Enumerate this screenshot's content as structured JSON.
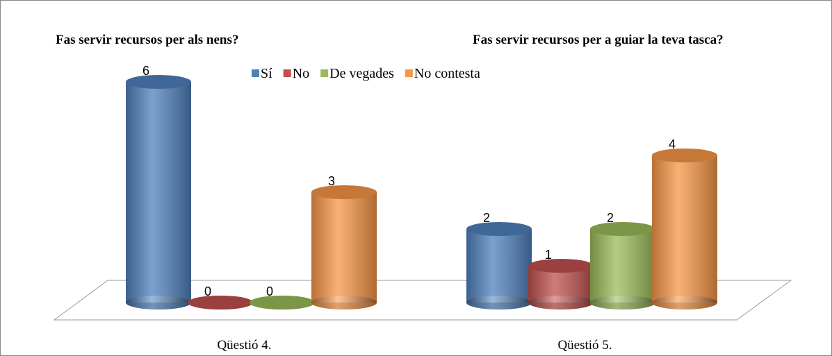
{
  "chart_data": {
    "type": "bar3d",
    "annotations": [
      "Fas servir recursos per als nens?",
      "Fas servir recursos per a guiar la teva tasca?"
    ],
    "categories": [
      "Qüestió 4.",
      "Qüestió 5."
    ],
    "series": [
      {
        "name": "Sí",
        "color": "#4f81bd",
        "values": [
          6,
          2
        ]
      },
      {
        "name": "No",
        "color": "#c0504d",
        "values": [
          0,
          1
        ]
      },
      {
        "name": "De vegades",
        "color": "#9bbb59",
        "values": [
          0,
          2
        ]
      },
      {
        "name": "No contesta",
        "color": "#f79646",
        "values": [
          3,
          4
        ]
      }
    ],
    "legend": "top"
  }
}
